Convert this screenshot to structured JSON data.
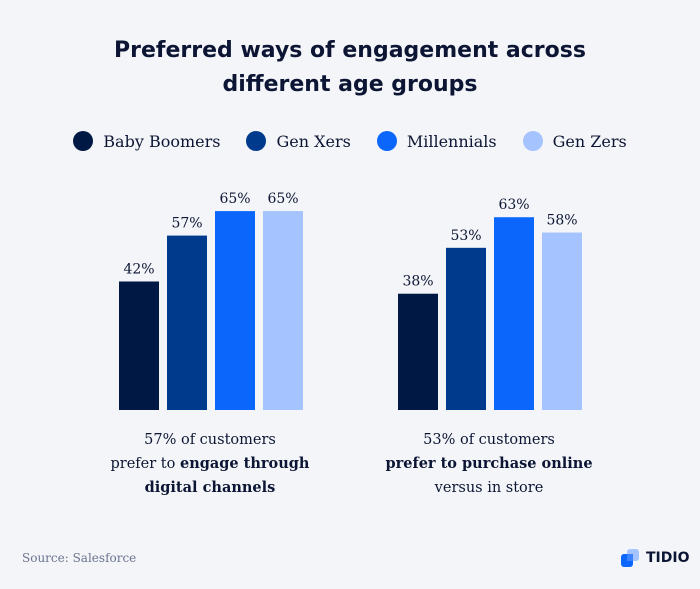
{
  "title_line1": "Preferred ways of engagement across",
  "title_line2": "different age groups",
  "legend": [
    {
      "label": "Baby Boomers",
      "color": "#001944"
    },
    {
      "label": "Gen Xers",
      "color": "#003a8c"
    },
    {
      "label": "Millennials",
      "color": "#0b66fc"
    },
    {
      "label": "Gen Zers",
      "color": "#a5c4ff"
    }
  ],
  "captions": [
    {
      "line1": "57% of customers",
      "line2_plain": "prefer to ",
      "line2_bold": "engage through",
      "line3_bold": "digital channels"
    },
    {
      "line1": "53% of customers",
      "line2_bold": "prefer to purchase online",
      "line3_plain": "versus in store"
    }
  ],
  "source": "Source: Salesforce",
  "brand": "TIDIO",
  "chart_data": {
    "type": "bar",
    "title": "Preferred ways of engagement across different age groups",
    "categories": [
      "Engage through digital channels",
      "Purchase online versus in store"
    ],
    "series": [
      {
        "name": "Baby Boomers",
        "values": [
          42,
          38
        ]
      },
      {
        "name": "Gen Xers",
        "values": [
          57,
          53
        ]
      },
      {
        "name": "Millennials",
        "values": [
          65,
          63
        ]
      },
      {
        "name": "Gen Zers",
        "values": [
          65,
          58
        ]
      }
    ],
    "value_labels": [
      [
        "42%",
        "57%",
        "65%",
        "65%"
      ],
      [
        "38%",
        "53%",
        "63%",
        "58%"
      ]
    ],
    "ylim": [
      0,
      100
    ],
    "grid": false
  }
}
